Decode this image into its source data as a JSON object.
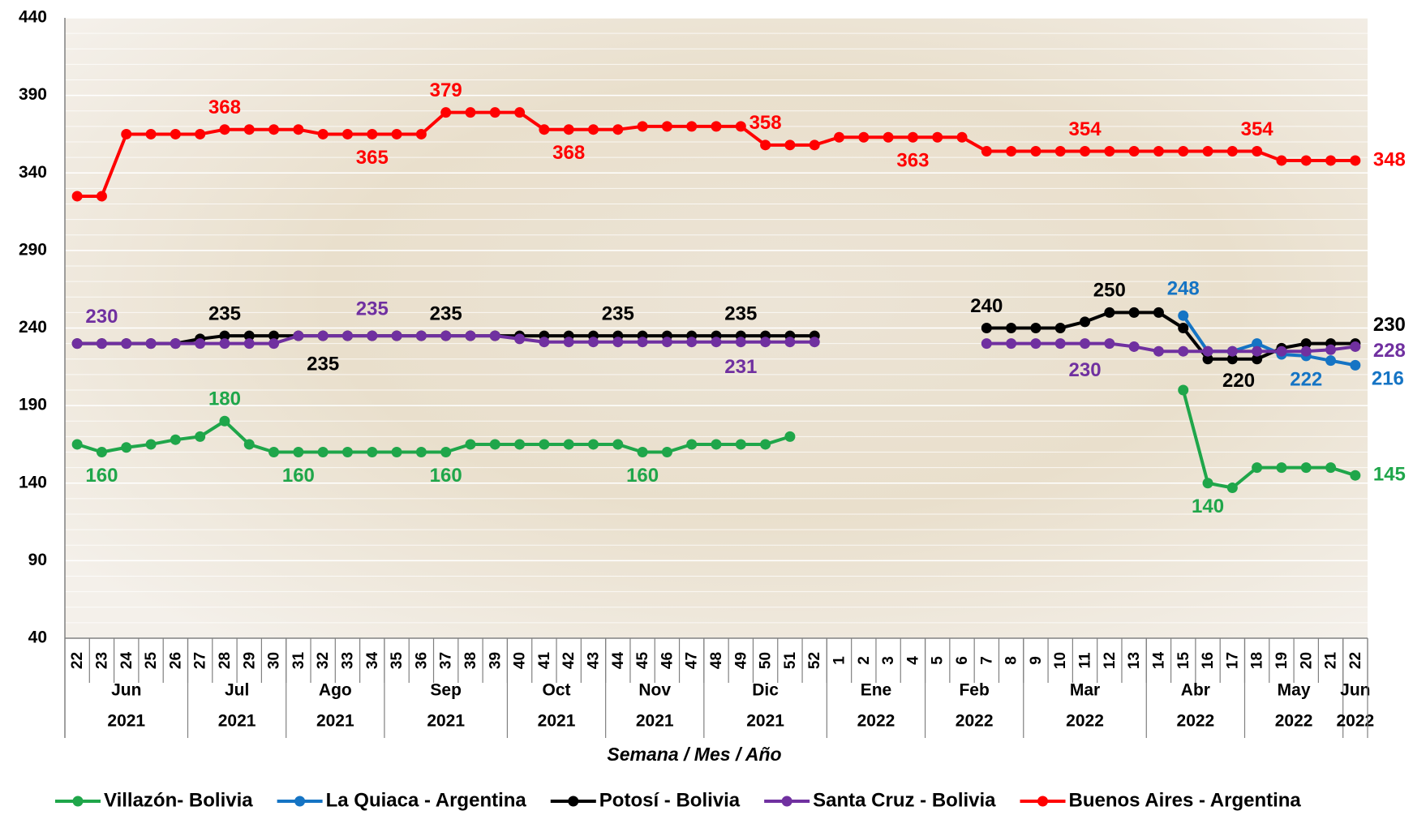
{
  "chart_data": {
    "type": "line",
    "x_label": "Semana / Mes / Año",
    "ylim": [
      40,
      440
    ],
    "yticks": [
      40,
      90,
      140,
      190,
      240,
      290,
      340,
      390,
      440
    ],
    "grid": true,
    "legend": "bottom",
    "categories": [
      "22",
      "23",
      "24",
      "25",
      "26",
      "27",
      "28",
      "29",
      "30",
      "31",
      "32",
      "33",
      "34",
      "35",
      "36",
      "37",
      "38",
      "39",
      "40",
      "41",
      "42",
      "43",
      "44",
      "45",
      "46",
      "47",
      "48",
      "49",
      "50",
      "51",
      "52",
      "1",
      "2",
      "3",
      "4",
      "5",
      "6",
      "7",
      "8",
      "9",
      "10",
      "11",
      "12",
      "13",
      "14",
      "15",
      "16",
      "17",
      "18",
      "19",
      "20",
      "21",
      "22"
    ],
    "category_groups": [
      {
        "month": "Jun",
        "year": "2021",
        "weeks": 5
      },
      {
        "month": "Jul",
        "year": "2021",
        "weeks": 4
      },
      {
        "month": "Ago",
        "year": "2021",
        "weeks": 4
      },
      {
        "month": "Sep",
        "year": "2021",
        "weeks": 5
      },
      {
        "month": "Oct",
        "year": "2021",
        "weeks": 4
      },
      {
        "month": "Nov",
        "year": "2021",
        "weeks": 4
      },
      {
        "month": "Dic",
        "year": "2021",
        "weeks": 5
      },
      {
        "month": "Ene",
        "year": "2022",
        "weeks": 4
      },
      {
        "month": "Feb",
        "year": "2022",
        "weeks": 4
      },
      {
        "month": "Mar",
        "year": "2022",
        "weeks": 5
      },
      {
        "month": "Abr",
        "year": "2022",
        "weeks": 4
      },
      {
        "month": "May",
        "year": "2022",
        "weeks": 4
      },
      {
        "month": "Jun",
        "year": "2022",
        "weeks": 1
      }
    ],
    "series": [
      {
        "name": "Villazón- Bolivia",
        "color": "#1fa64a",
        "values": [
          165,
          160,
          163,
          165,
          168,
          170,
          180,
          165,
          160,
          160,
          160,
          160,
          160,
          160,
          160,
          160,
          165,
          165,
          165,
          165,
          165,
          165,
          165,
          160,
          160,
          165,
          165,
          165,
          165,
          170,
          null,
          null,
          null,
          null,
          null,
          null,
          null,
          null,
          null,
          null,
          null,
          null,
          null,
          null,
          null,
          200,
          140,
          137,
          150,
          150,
          150,
          150,
          145
        ],
        "value_labels": [
          null,
          "160",
          null,
          null,
          null,
          null,
          "180",
          null,
          null,
          "160",
          null,
          null,
          null,
          null,
          null,
          "160",
          null,
          null,
          null,
          null,
          null,
          null,
          null,
          "160",
          null,
          null,
          null,
          null,
          null,
          null,
          null,
          null,
          null,
          null,
          null,
          null,
          null,
          null,
          null,
          null,
          null,
          null,
          null,
          null,
          null,
          null,
          "140",
          null,
          null,
          null,
          null,
          null,
          "145"
        ]
      },
      {
        "name": "La Quiaca - Argentina",
        "color": "#1574c4",
        "values": [
          null,
          null,
          null,
          null,
          null,
          null,
          null,
          null,
          null,
          null,
          null,
          null,
          null,
          null,
          null,
          null,
          null,
          null,
          null,
          null,
          null,
          null,
          null,
          null,
          null,
          null,
          null,
          null,
          null,
          null,
          null,
          null,
          null,
          null,
          null,
          null,
          null,
          null,
          null,
          null,
          null,
          null,
          null,
          null,
          null,
          248,
          225,
          225,
          230,
          223,
          222,
          219,
          216
        ],
        "value_labels": [
          null,
          null,
          null,
          null,
          null,
          null,
          null,
          null,
          null,
          null,
          null,
          null,
          null,
          null,
          null,
          null,
          null,
          null,
          null,
          null,
          null,
          null,
          null,
          null,
          null,
          null,
          null,
          null,
          null,
          null,
          null,
          null,
          null,
          null,
          null,
          null,
          null,
          null,
          null,
          null,
          null,
          null,
          null,
          null,
          null,
          "248",
          null,
          null,
          null,
          null,
          "222",
          null,
          "216"
        ]
      },
      {
        "name": "Potosí - Bolivia",
        "color": "#000000",
        "values": [
          230,
          230,
          230,
          230,
          230,
          233,
          235,
          235,
          235,
          235,
          235,
          235,
          235,
          235,
          235,
          235,
          235,
          235,
          235,
          235,
          235,
          235,
          235,
          235,
          235,
          235,
          235,
          235,
          235,
          235,
          235,
          null,
          null,
          null,
          null,
          null,
          null,
          240,
          240,
          240,
          240,
          244,
          250,
          250,
          250,
          240,
          220,
          220,
          220,
          227,
          230,
          230,
          230
        ],
        "value_labels": [
          null,
          null,
          null,
          null,
          null,
          null,
          "235",
          null,
          null,
          null,
          "235",
          null,
          null,
          null,
          null,
          "235",
          null,
          null,
          null,
          null,
          null,
          null,
          "235",
          null,
          null,
          null,
          null,
          "235",
          null,
          null,
          null,
          null,
          null,
          null,
          null,
          null,
          null,
          "240",
          null,
          null,
          null,
          null,
          "250",
          null,
          null,
          null,
          "220",
          null,
          null,
          null,
          null,
          null,
          "230"
        ]
      },
      {
        "name": "Santa Cruz - Bolivia",
        "color": "#7030a0",
        "values": [
          230,
          230,
          230,
          230,
          230,
          230,
          230,
          230,
          230,
          235,
          235,
          235,
          235,
          235,
          235,
          235,
          235,
          235,
          233,
          231,
          231,
          231,
          231,
          231,
          231,
          231,
          231,
          231,
          231,
          231,
          231,
          null,
          null,
          null,
          null,
          null,
          null,
          230,
          230,
          230,
          230,
          230,
          230,
          228,
          225,
          225,
          225,
          225,
          225,
          225,
          225,
          226,
          228
        ],
        "value_labels": [
          null,
          "230",
          null,
          null,
          null,
          null,
          null,
          null,
          null,
          null,
          null,
          null,
          "235",
          null,
          null,
          null,
          null,
          null,
          null,
          null,
          null,
          null,
          null,
          null,
          null,
          null,
          null,
          "231",
          null,
          null,
          null,
          null,
          null,
          null,
          null,
          null,
          null,
          null,
          null,
          null,
          null,
          "230",
          null,
          null,
          null,
          null,
          null,
          null,
          null,
          null,
          null,
          null,
          "228"
        ]
      },
      {
        "name": "Buenos Aires - Argentina",
        "color": "#ff0000",
        "values": [
          325,
          325,
          365,
          365,
          365,
          365,
          368,
          368,
          368,
          368,
          365,
          365,
          365,
          365,
          365,
          379,
          379,
          379,
          379,
          368,
          368,
          368,
          368,
          370,
          370,
          370,
          370,
          370,
          358,
          358,
          358,
          363,
          363,
          363,
          363,
          363,
          363,
          354,
          354,
          354,
          354,
          354,
          354,
          354,
          354,
          354,
          354,
          354,
          354,
          348,
          348,
          348,
          348
        ],
        "value_labels": [
          null,
          null,
          null,
          null,
          null,
          null,
          "368",
          null,
          null,
          null,
          null,
          null,
          "365",
          null,
          null,
          "379",
          null,
          null,
          null,
          null,
          "368",
          null,
          null,
          null,
          null,
          null,
          null,
          null,
          "358",
          null,
          null,
          null,
          null,
          null,
          "363",
          null,
          null,
          null,
          null,
          null,
          null,
          "354",
          null,
          null,
          null,
          null,
          null,
          null,
          "354",
          null,
          null,
          null,
          "348"
        ]
      }
    ]
  }
}
